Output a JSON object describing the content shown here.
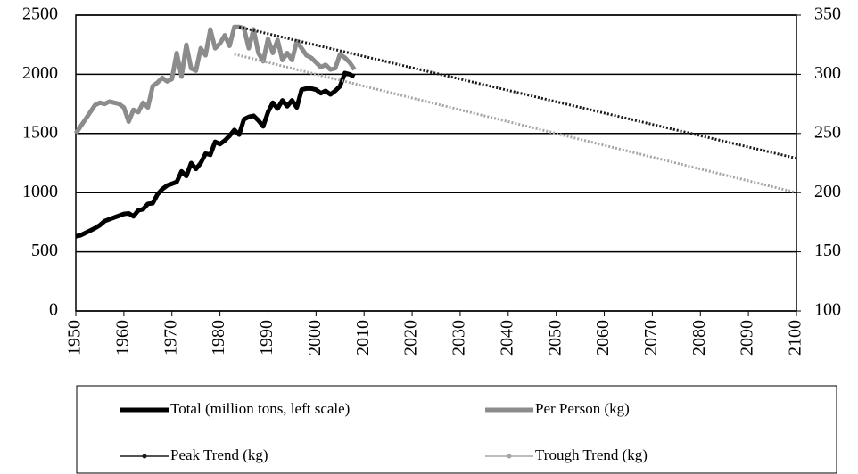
{
  "chart_data": {
    "type": "line",
    "x": [
      1950,
      1951,
      1952,
      1953,
      1954,
      1955,
      1956,
      1957,
      1958,
      1959,
      1960,
      1961,
      1962,
      1963,
      1964,
      1965,
      1966,
      1967,
      1968,
      1969,
      1970,
      1971,
      1972,
      1973,
      1974,
      1975,
      1976,
      1977,
      1978,
      1979,
      1980,
      1981,
      1982,
      1983,
      1984,
      1985,
      1986,
      1987,
      1988,
      1989,
      1990,
      1991,
      1992,
      1993,
      1994,
      1995,
      1996,
      1997,
      1998,
      1999,
      2000,
      2001,
      2002,
      2003,
      2004,
      2005,
      2006,
      2007,
      2008
    ],
    "series": [
      {
        "name": "Total (million tons, left scale)",
        "color": "#000000",
        "width": 5,
        "dashed": false,
        "values": [
          631,
          640,
          660,
          680,
          700,
          725,
          760,
          775,
          790,
          805,
          820,
          825,
          800,
          850,
          860,
          905,
          910,
          985,
          1030,
          1060,
          1075,
          1090,
          1180,
          1140,
          1250,
          1200,
          1250,
          1330,
          1320,
          1430,
          1410,
          1440,
          1480,
          1530,
          1490,
          1620,
          1640,
          1650,
          1610,
          1560,
          1680,
          1760,
          1710,
          1780,
          1730,
          1780,
          1720,
          1870,
          1880,
          1880,
          1870,
          1840,
          1860,
          1830,
          1860,
          1900,
          2010,
          2000,
          1980
        ]
      },
      {
        "name": "Per Person (kg)",
        "color": "#8c8c8c",
        "width": 5,
        "dashed": false,
        "axis": "y2",
        "values": [
          250,
          256,
          262,
          268,
          274,
          276,
          275,
          277,
          276,
          275,
          272,
          260,
          270,
          268,
          276,
          272,
          290,
          293,
          297,
          294,
          296,
          318,
          298,
          325,
          305,
          303,
          322,
          316,
          338,
          322,
          326,
          333,
          324,
          340,
          340,
          339,
          322,
          338,
          318,
          311,
          330,
          318,
          329,
          312,
          318,
          312,
          328,
          322,
          316,
          314,
          310,
          306,
          308,
          304,
          305,
          317,
          314,
          310,
          304
        ]
      },
      {
        "name": "Peak Trend (kg)",
        "color": "#1a1a1a",
        "width": 3,
        "dashed": true,
        "axis": "y2",
        "x": [
          1984,
          2100
        ],
        "values": [
          340,
          229
        ]
      },
      {
        "name": "Trough Trend (kg)",
        "color": "#a6a6a6",
        "width": 3,
        "dashed": true,
        "axis": "y2",
        "x": [
          1983,
          2100
        ],
        "values": [
          317,
          200
        ]
      }
    ],
    "xlim": [
      1950,
      2100
    ],
    "xticks": [
      1950,
      1960,
      1970,
      1980,
      1990,
      2000,
      2010,
      2020,
      2030,
      2040,
      2050,
      2060,
      2070,
      2080,
      2090,
      2100
    ],
    "ylim": [
      0,
      2500
    ],
    "yticks": [
      0,
      500,
      1000,
      1500,
      2000,
      2500
    ],
    "y2lim": [
      100,
      350
    ],
    "y2ticks": [
      100,
      150,
      200,
      250,
      300,
      350
    ],
    "grid": true,
    "legend": "bottom"
  }
}
